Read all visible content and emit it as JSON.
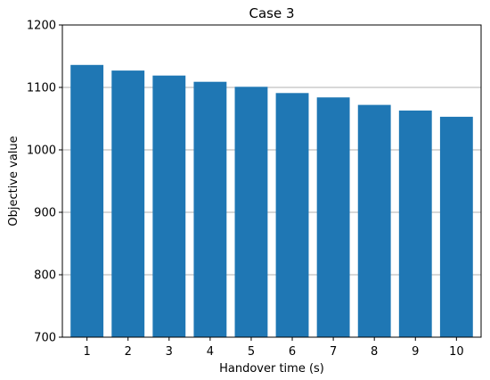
{
  "chart_data": {
    "type": "bar",
    "title": "Case 3",
    "xlabel": "Handover time (s)",
    "ylabel": "Objective value",
    "categories": [
      "1",
      "2",
      "3",
      "4",
      "5",
      "6",
      "7",
      "8",
      "9",
      "10"
    ],
    "values": [
      1136,
      1127,
      1119,
      1109,
      1101,
      1091,
      1084,
      1072,
      1063,
      1053
    ],
    "ylim": [
      700,
      1200
    ],
    "yticks": [
      700,
      800,
      900,
      1000,
      1100,
      1200
    ],
    "grid": "y",
    "colors": {
      "bar": "#1f77b4",
      "grid": "#b0b0b0",
      "axis": "#000000"
    }
  }
}
